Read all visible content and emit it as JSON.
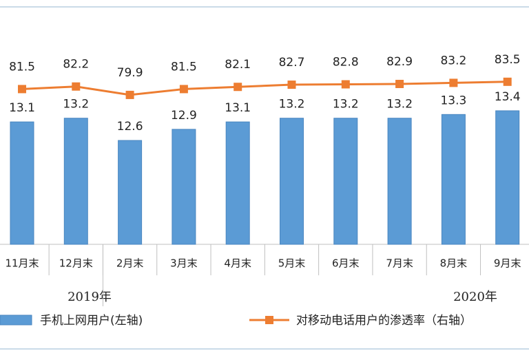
{
  "chart_data": {
    "type": "bar",
    "categories": [
      "11月末",
      "12月末",
      "2月末",
      "3月末",
      "4月末",
      "5月末",
      "6月末",
      "7月末",
      "8月末",
      "9月末"
    ],
    "group_labels": [
      "2019年",
      "2020年"
    ],
    "series": [
      {
        "name": "手机上网用户(左轴)",
        "type": "bar",
        "color": "#5b9bd5",
        "values": [
          13.1,
          13.2,
          12.6,
          12.9,
          13.1,
          13.2,
          13.2,
          13.2,
          13.3,
          13.4
        ]
      },
      {
        "name": "对移动电话用户的渗透率（右轴）",
        "type": "line",
        "axis": "y2",
        "color": "#ed7d31",
        "values": [
          81.5,
          82.2,
          79.9,
          81.5,
          82.1,
          82.7,
          82.8,
          82.9,
          83.2,
          83.5
        ]
      }
    ],
    "ylim": [
      9.8,
      16.2
    ],
    "y2lim": [
      39,
      104
    ]
  }
}
